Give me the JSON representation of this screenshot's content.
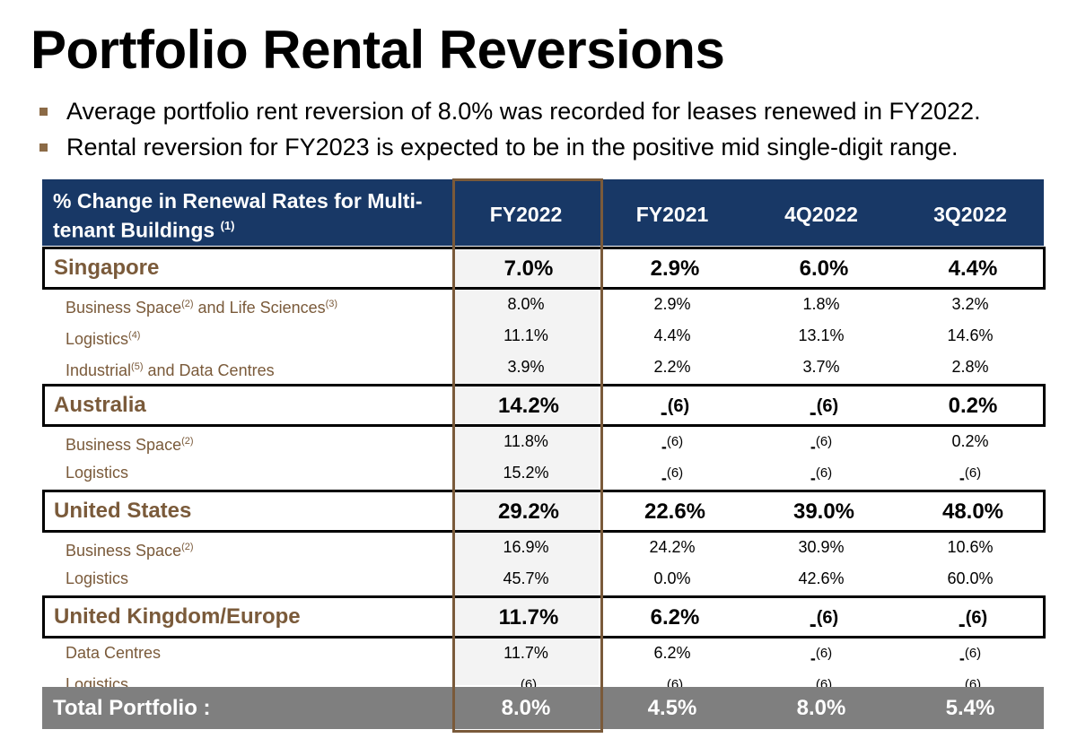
{
  "title": "Portfolio Rental Reversions",
  "bullets": [
    "Average portfolio rent reversion of 8.0% was recorded for leases renewed in FY2022.",
    "Rental reversion for FY2023 is expected to be in the positive mid single-digit range."
  ],
  "table": {
    "header_label": "% Change in Renewal Rates for Multi-tenant Buildings",
    "header_note": "(1)",
    "columns": [
      "FY2022",
      "FY2021",
      "4Q2022",
      "3Q2022"
    ],
    "dash_note": "(6)",
    "regions": [
      {
        "name": "Singapore",
        "values": [
          "7.0%",
          "2.9%",
          "6.0%",
          "4.4%"
        ],
        "subrows": [
          {
            "name": "Business Space",
            "note": "(2)",
            "name2": " and Life Sciences",
            "note2": "(3)",
            "values": [
              "8.0%",
              "2.9%",
              "1.8%",
              "3.2%"
            ]
          },
          {
            "name": "Logistics",
            "note": "(4)",
            "values": [
              "11.1%",
              "4.4%",
              "13.1%",
              "14.6%"
            ]
          },
          {
            "name": "Industrial",
            "note": "(5)",
            "name2": " and Data Centres",
            "values": [
              "3.9%",
              "2.2%",
              "3.7%",
              "2.8%"
            ]
          }
        ]
      },
      {
        "name": "Australia",
        "values": [
          "14.2%",
          "-",
          "-",
          "0.2%"
        ],
        "subrows": [
          {
            "name": "Business Space",
            "note": "(2)",
            "values": [
              "11.8%",
              "-",
              "-",
              "0.2%"
            ]
          },
          {
            "name": "Logistics",
            "values": [
              "15.2%",
              "-",
              "-",
              "-"
            ]
          }
        ]
      },
      {
        "name": "United States",
        "values": [
          "29.2%",
          "22.6%",
          "39.0%",
          "48.0%"
        ],
        "subrows": [
          {
            "name": "Business Space",
            "note": "(2)",
            "values": [
              "16.9%",
              "24.2%",
              "30.9%",
              "10.6%"
            ]
          },
          {
            "name": "Logistics",
            "values": [
              "45.7%",
              "0.0%",
              "42.6%",
              "60.0%"
            ]
          }
        ]
      },
      {
        "name": "United Kingdom/Europe",
        "values": [
          "11.7%",
          "6.2%",
          "-",
          "-"
        ],
        "subrows": [
          {
            "name": "Data Centres",
            "values": [
              "11.7%",
              "6.2%",
              "-",
              "-"
            ]
          },
          {
            "name": "Logistics",
            "values": [
              "-",
              "-",
              "-",
              "-"
            ]
          }
        ]
      }
    ],
    "total": {
      "label": "Total Portfolio :",
      "values": [
        "8.0%",
        "4.5%",
        "8.0%",
        "5.4%"
      ]
    }
  },
  "colors": {
    "header_bg": "#183866",
    "accent_brown": "#7a5a3a",
    "total_bg": "#7f7f7f"
  }
}
